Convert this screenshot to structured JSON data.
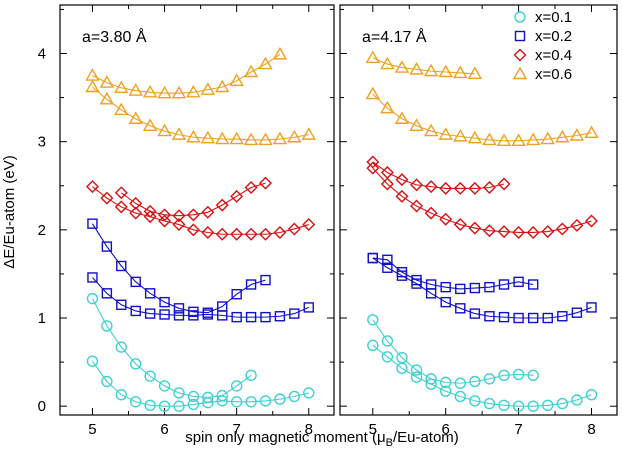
{
  "chart_data": {
    "type": "line",
    "ylabel": "ΔE/Eu-atom (eV)",
    "xlabel": {
      "prefix": "spin only magnetic moment  (μ",
      "sub": "B",
      "suffix": "/Eu-atom)"
    },
    "shared_y_axis": {
      "ylim": [
        -0.1,
        4.55
      ],
      "ticks": [
        0,
        1,
        2,
        3,
        4
      ]
    },
    "legend": {
      "placement": "top-right",
      "entries": [
        {
          "label": "x=0.1",
          "color": "#40d0d0",
          "marker": "circle"
        },
        {
          "label": "x=0.2",
          "color": "#1010c8",
          "marker": "square"
        },
        {
          "label": "x=0.4",
          "color": "#d81010",
          "marker": "diamond"
        },
        {
          "label": "x=0.6",
          "color": "#f0a020",
          "marker": "triangle"
        }
      ]
    },
    "panels": [
      {
        "annotation": "a=3.80 Å",
        "xlim": [
          4.55,
          8.35
        ],
        "xticks": [
          5,
          6,
          7,
          8
        ],
        "series": [
          {
            "group": "x=0.1",
            "x": [
              5.0,
              5.2,
              5.4,
              5.6,
              5.8,
              6.0,
              6.2,
              6.4,
              6.6,
              6.8,
              7.0,
              7.2,
              7.4,
              7.6,
              7.8,
              8.0
            ],
            "y": [
              0.51,
              0.28,
              0.13,
              0.05,
              0.01,
              0.0,
              0.0,
              0.02,
              0.04,
              0.06,
              0.05,
              0.05,
              0.06,
              0.08,
              0.11,
              0.15
            ]
          },
          {
            "group": "x=0.1",
            "x": [
              5.0,
              5.2,
              5.4,
              5.6,
              5.8,
              6.0,
              6.2,
              6.4,
              6.6,
              6.8,
              7.0,
              7.2
            ],
            "y": [
              1.22,
              0.91,
              0.67,
              0.48,
              0.34,
              0.23,
              0.15,
              0.11,
              0.1,
              0.12,
              0.23,
              0.35
            ]
          },
          {
            "group": "x=0.2",
            "x": [
              5.0,
              5.2,
              5.4,
              5.6,
              5.8,
              6.0,
              6.2,
              6.4,
              6.6,
              6.8,
              7.0,
              7.2,
              7.4,
              7.6,
              7.8,
              8.0
            ],
            "y": [
              1.46,
              1.28,
              1.15,
              1.08,
              1.05,
              1.04,
              1.03,
              1.03,
              1.04,
              1.03,
              1.01,
              1.01,
              1.01,
              1.02,
              1.05,
              1.12
            ]
          },
          {
            "group": "x=0.2",
            "x": [
              5.0,
              5.2,
              5.4,
              5.6,
              5.8,
              6.0,
              6.2,
              6.4,
              6.6,
              6.8,
              7.0,
              7.2,
              7.4
            ],
            "y": [
              2.07,
              1.81,
              1.59,
              1.41,
              1.28,
              1.18,
              1.11,
              1.07,
              1.06,
              1.13,
              1.27,
              1.38,
              1.43
            ]
          },
          {
            "group": "x=0.4",
            "x": [
              5.0,
              5.2,
              5.4,
              5.6,
              5.8,
              6.0,
              6.2,
              6.4,
              6.6,
              6.8,
              7.0,
              7.2,
              7.4,
              7.6,
              7.8,
              8.0
            ],
            "y": [
              2.49,
              2.36,
              2.26,
              2.19,
              2.15,
              2.1,
              2.06,
              2.0,
              1.97,
              1.95,
              1.95,
              1.95,
              1.95,
              1.97,
              2.01,
              2.06
            ]
          },
          {
            "group": "x=0.4",
            "x": [
              5.4,
              5.6,
              5.8,
              6.0,
              6.2,
              6.4,
              6.6,
              6.8,
              7.0,
              7.2,
              7.4
            ],
            "y": [
              2.42,
              2.3,
              2.21,
              2.17,
              2.16,
              2.17,
              2.2,
              2.28,
              2.38,
              2.48,
              2.53
            ]
          },
          {
            "group": "x=0.6",
            "x": [
              5.0,
              5.2,
              5.4,
              5.6,
              5.8,
              6.0,
              6.2,
              6.4,
              6.6,
              6.8,
              7.0,
              7.2,
              7.4,
              7.6,
              7.8,
              8.0
            ],
            "y": [
              3.62,
              3.48,
              3.36,
              3.26,
              3.18,
              3.12,
              3.08,
              3.05,
              3.04,
              3.03,
              3.03,
              3.02,
              3.02,
              3.03,
              3.05,
              3.08
            ]
          },
          {
            "group": "x=0.6",
            "x": [
              5.0,
              5.2,
              5.4,
              5.6,
              5.8,
              6.0,
              6.2,
              6.4,
              6.6,
              6.8,
              7.0,
              7.2,
              7.4,
              7.6
            ],
            "y": [
              3.75,
              3.67,
              3.61,
              3.58,
              3.56,
              3.55,
              3.55,
              3.56,
              3.59,
              3.62,
              3.69,
              3.79,
              3.88,
              3.99
            ]
          }
        ]
      },
      {
        "annotation": "a=4.17 Å",
        "xlim": [
          4.55,
          8.35
        ],
        "xticks": [
          5,
          6,
          7,
          8
        ],
        "series": [
          {
            "group": "x=0.1",
            "x": [
              5.0,
              5.2,
              5.4,
              5.6,
              5.8,
              6.0,
              6.2,
              6.4,
              6.6,
              6.8,
              7.0,
              7.2,
              7.4,
              7.6,
              7.8,
              8.0
            ],
            "y": [
              0.69,
              0.56,
              0.43,
              0.33,
              0.25,
              0.17,
              0.11,
              0.06,
              0.03,
              0.01,
              0.0,
              0.0,
              0.01,
              0.03,
              0.07,
              0.13
            ]
          },
          {
            "group": "x=0.1",
            "x": [
              5.0,
              5.2,
              5.4,
              5.6,
              5.8,
              6.0,
              6.2,
              6.4,
              6.6,
              6.8,
              7.0,
              7.2
            ],
            "y": [
              0.98,
              0.74,
              0.55,
              0.41,
              0.31,
              0.27,
              0.26,
              0.28,
              0.31,
              0.35,
              0.36,
              0.35
            ]
          },
          {
            "group": "x=0.2",
            "x": [
              5.0,
              5.2,
              5.4,
              5.6,
              5.8,
              6.0,
              6.2,
              6.4,
              6.6,
              6.8,
              7.0,
              7.2,
              7.4,
              7.6,
              7.8,
              8.0
            ],
            "y": [
              1.68,
              1.57,
              1.48,
              1.39,
              1.28,
              1.18,
              1.11,
              1.05,
              1.02,
              1.01,
              1.0,
              1.0,
              1.0,
              1.02,
              1.06,
              1.12
            ]
          },
          {
            "group": "x=0.2",
            "x": [
              5.0,
              5.2,
              5.4,
              5.6,
              5.8,
              6.0,
              6.2,
              6.4,
              6.6,
              6.8,
              7.0,
              7.2
            ],
            "y": [
              1.68,
              1.66,
              1.52,
              1.43,
              1.38,
              1.35,
              1.33,
              1.34,
              1.35,
              1.38,
              1.41,
              1.38
            ]
          },
          {
            "group": "x=0.4",
            "x": [
              5.0,
              5.2,
              5.4,
              5.6,
              5.8,
              6.0,
              6.2,
              6.4,
              6.6,
              6.8,
              7.0,
              7.2,
              7.4,
              7.6,
              7.8,
              8.0
            ],
            "y": [
              2.7,
              2.52,
              2.38,
              2.27,
              2.19,
              2.12,
              2.06,
              2.02,
              1.99,
              1.98,
              1.97,
              1.97,
              1.98,
              2.01,
              2.05,
              2.1
            ]
          },
          {
            "group": "x=0.4",
            "x": [
              5.0,
              5.2,
              5.4,
              5.6,
              5.8,
              6.0,
              6.2,
              6.4,
              6.6,
              6.8
            ],
            "y": [
              2.77,
              2.65,
              2.57,
              2.51,
              2.49,
              2.47,
              2.47,
              2.47,
              2.48,
              2.52
            ]
          },
          {
            "group": "x=0.6",
            "x": [
              5.0,
              5.2,
              5.4,
              5.6,
              5.8,
              6.0,
              6.2,
              6.4,
              6.6,
              6.8,
              7.0,
              7.2,
              7.4,
              7.6,
              7.8,
              8.0
            ],
            "y": [
              3.54,
              3.38,
              3.26,
              3.18,
              3.12,
              3.08,
              3.06,
              3.04,
              3.02,
              3.01,
              3.01,
              3.02,
              3.03,
              3.05,
              3.07,
              3.1
            ]
          },
          {
            "group": "x=0.6",
            "x": [
              5.0,
              5.2,
              5.4,
              5.6,
              5.8,
              6.0,
              6.2,
              6.4
            ],
            "y": [
              3.95,
              3.88,
              3.84,
              3.82,
              3.8,
              3.79,
              3.78,
              3.77
            ]
          }
        ]
      }
    ]
  }
}
